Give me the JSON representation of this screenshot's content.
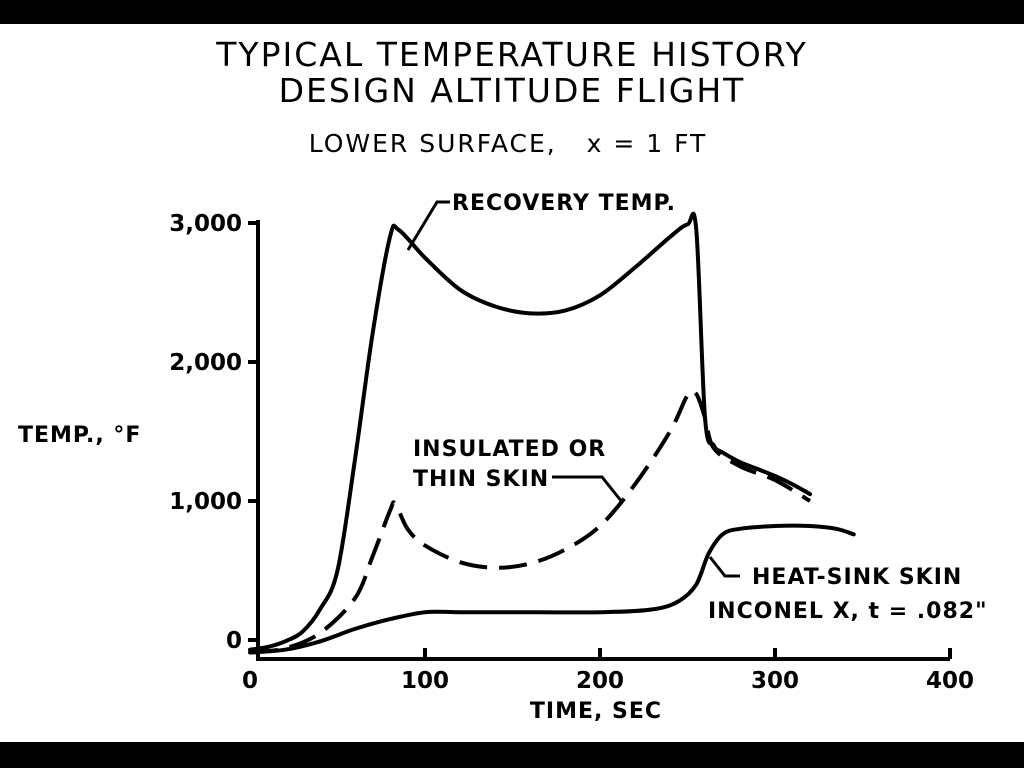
{
  "chart_data": {
    "type": "line",
    "title": "TYPICAL TEMPERATURE HISTORY",
    "subtitle": "DESIGN ALTITUDE FLIGHT",
    "condition": "LOWER SURFACE,   x = 1 FT",
    "xlabel": "TIME, SEC",
    "ylabel": "TEMP., °F",
    "xlim": [
      0,
      400
    ],
    "ylim": [
      -100,
      3000
    ],
    "x_ticks": [
      "0",
      "100",
      "200",
      "300",
      "400"
    ],
    "y_ticks": [
      "0",
      "1,000",
      "2,000",
      "3,000"
    ],
    "grid": false,
    "series": [
      {
        "name": "RECOVERY TEMP.",
        "style": "solid",
        "x": [
          0,
          10,
          20,
          30,
          40,
          50,
          60,
          70,
          80,
          85,
          100,
          120,
          140,
          160,
          180,
          200,
          220,
          240,
          250,
          255,
          260,
          265,
          270,
          280,
          290,
          300,
          310,
          320
        ],
        "y": [
          -70,
          -50,
          -10,
          60,
          220,
          500,
          1300,
          2200,
          2900,
          2950,
          2750,
          2520,
          2400,
          2350,
          2370,
          2480,
          2680,
          2900,
          2990,
          2950,
          1600,
          1400,
          1350,
          1280,
          1230,
          1180,
          1120,
          1050
        ]
      },
      {
        "name": "INSULATED OR THIN SKIN",
        "style": "dashed",
        "x": [
          0,
          20,
          40,
          60,
          70,
          80,
          83,
          90,
          100,
          120,
          140,
          160,
          180,
          200,
          220,
          240,
          250,
          255,
          260,
          265,
          280,
          300,
          320
        ],
        "y": [
          -90,
          -60,
          50,
          300,
          600,
          930,
          980,
          800,
          680,
          560,
          520,
          550,
          650,
          820,
          1120,
          1500,
          1760,
          1770,
          1600,
          1380,
          1250,
          1150,
          1000
        ]
      },
      {
        "name": "HEAT-SINK SKIN",
        "style": "solid",
        "x": [
          0,
          20,
          40,
          60,
          80,
          100,
          120,
          150,
          200,
          230,
          245,
          255,
          262,
          270,
          280,
          300,
          320,
          335,
          345
        ],
        "y": [
          -90,
          -70,
          -10,
          80,
          150,
          200,
          200,
          200,
          200,
          220,
          280,
          400,
          620,
          760,
          800,
          820,
          820,
          800,
          760
        ]
      }
    ],
    "annotations": [
      {
        "text": "RECOVERY TEMP."
      },
      {
        "text": "INSULATED OR"
      },
      {
        "text": "THIN SKIN"
      },
      {
        "text": "HEAT-SINK SKIN"
      },
      {
        "text": "INCONEL X, t = .082\""
      }
    ]
  }
}
